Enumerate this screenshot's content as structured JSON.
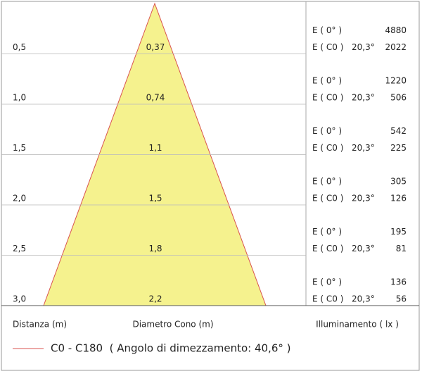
{
  "rows": [
    {
      "distance": "0,5",
      "diameter": "0,37",
      "e0_label": "E ( 0° )",
      "e0": "4880",
      "ec0_label": "E ( C0 )",
      "angle": "20,3°",
      "ec0": "2022"
    },
    {
      "distance": "1,0",
      "diameter": "0,74",
      "e0_label": "E ( 0° )",
      "e0": "1220",
      "ec0_label": "E ( C0 )",
      "angle": "20,3°",
      "ec0": "506"
    },
    {
      "distance": "1,5",
      "diameter": "1,1",
      "e0_label": "E ( 0° )",
      "e0": "542",
      "ec0_label": "E ( C0 )",
      "angle": "20,3°",
      "ec0": "225"
    },
    {
      "distance": "2,0",
      "diameter": "1,5",
      "e0_label": "E ( 0° )",
      "e0": "305",
      "ec0_label": "E ( C0 )",
      "angle": "20,3°",
      "ec0": "126"
    },
    {
      "distance": "2,5",
      "diameter": "1,8",
      "e0_label": "E ( 0° )",
      "e0": "195",
      "ec0_label": "E ( C0 )",
      "angle": "20,3°",
      "ec0": "81"
    },
    {
      "distance": "3,0",
      "diameter": "2,2",
      "e0_label": "E ( 0° )",
      "e0": "136",
      "ec0_label": "E ( C0 )",
      "angle": "20,3°",
      "ec0": "56"
    }
  ],
  "footer": {
    "distance_label": "Distanza (m)",
    "diameter_label": "Diametro Cono (m)",
    "illuminance_label": "Illuminamento ( lx )"
  },
  "legend": {
    "label": "C0 - C180  ( Angolo di dimezzamento: 40,6° )"
  }
}
